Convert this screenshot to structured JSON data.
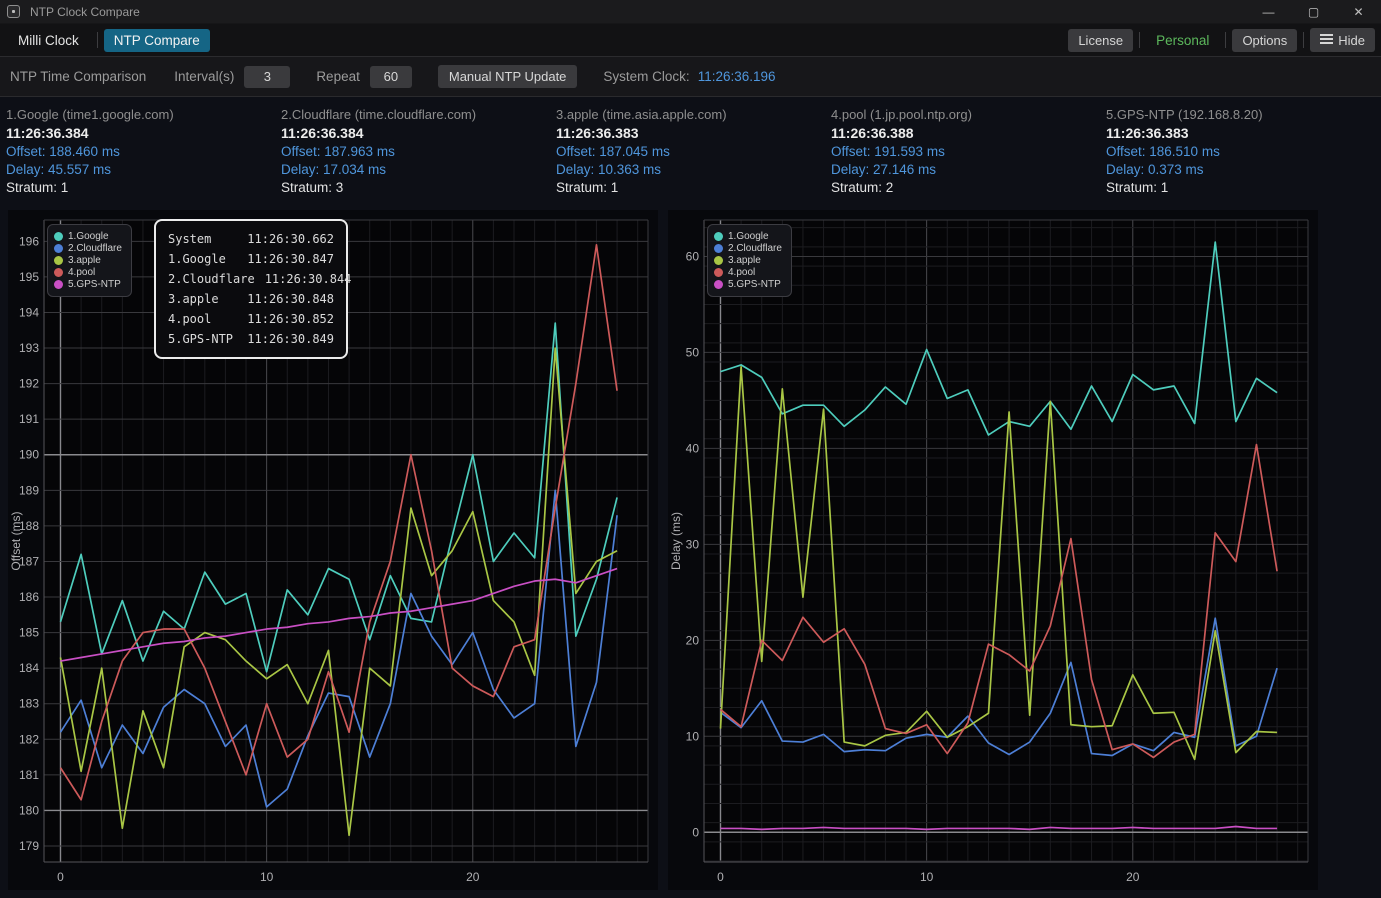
{
  "window": {
    "title": "NTP Clock Compare",
    "minimize": "—",
    "maximize": "▢",
    "close": "✕"
  },
  "tabbar": {
    "tab_milli": "Milli Clock",
    "tab_ntp": "NTP Compare",
    "license": "License",
    "personal": "Personal",
    "options": "Options",
    "hide": "Hide"
  },
  "toolbar": {
    "title": "NTP Time Comparison",
    "interval_label": "Interval(s)",
    "interval_value": "3",
    "repeat_label": "Repeat",
    "repeat_value": "60",
    "update_button": "Manual NTP Update",
    "system_clock_label": "System Clock:",
    "system_clock_value": "11:26:36.196"
  },
  "servers": [
    {
      "name": "1.Google (time1.google.com)",
      "time": "11:26:36.384",
      "offset": "Offset: 188.460 ms",
      "delay": "Delay: 45.557 ms",
      "stratum": "Stratum: 1"
    },
    {
      "name": "2.Cloudflare (time.cloudflare.com)",
      "time": "11:26:36.384",
      "offset": "Offset: 187.963 ms",
      "delay": "Delay: 17.034 ms",
      "stratum": "Stratum: 3"
    },
    {
      "name": "3.apple (time.asia.apple.com)",
      "time": "11:26:36.383",
      "offset": "Offset: 187.045 ms",
      "delay": "Delay: 10.363 ms",
      "stratum": "Stratum: 1"
    },
    {
      "name": "4.pool (1.jp.pool.ntp.org)",
      "time": "11:26:36.388",
      "offset": "Offset: 191.593 ms",
      "delay": "Delay: 27.146 ms",
      "stratum": "Stratum: 2"
    },
    {
      "name": "5.GPS-NTP (192.168.8.20)",
      "time": "11:26:36.383",
      "offset": "Offset: 186.510 ms",
      "delay": "Delay: 0.373 ms",
      "stratum": "Stratum: 1"
    }
  ],
  "tooltip": {
    "rows": [
      [
        "System",
        "11:26:30.662"
      ],
      [
        "1.Google",
        "11:26:30.847"
      ],
      [
        "2.Cloudflare",
        "11:26:30.844"
      ],
      [
        "3.apple",
        "11:26:30.848"
      ],
      [
        "4.pool",
        "11:26:30.852"
      ],
      [
        "5.GPS-NTP",
        "11:26:30.849"
      ]
    ]
  },
  "colors": {
    "google": "#4ecdbd",
    "cloudflare": "#4d7fd6",
    "apple": "#a9c645",
    "pool": "#cd5a5a",
    "gps": "#c94fc4",
    "accent_blue": "#4f96dc",
    "tab_active": "#156585",
    "green": "#5cb85c"
  },
  "chart_data": [
    {
      "type": "line",
      "title": "",
      "ylabel": "Offset (ms)",
      "xlabel": "",
      "ylim": [
        178.55,
        196.6
      ],
      "xlim": [
        -0.8,
        28.5
      ],
      "y_ticks": [
        179,
        180,
        181,
        182,
        183,
        184,
        185,
        186,
        187,
        188,
        189,
        190,
        191,
        192,
        193,
        194,
        195,
        196
      ],
      "y_bright": [
        180,
        190
      ],
      "x_ticks": [
        0,
        10,
        20
      ],
      "x_minor_step": 1,
      "legend_position": "top-left",
      "grid": true,
      "x": [
        0,
        1,
        2,
        3,
        4,
        5,
        6,
        7,
        8,
        9,
        10,
        11,
        12,
        13,
        14,
        15,
        16,
        17,
        18,
        19,
        20,
        21,
        22,
        23,
        24,
        25,
        26,
        27
      ],
      "series": [
        {
          "name": "1.Google",
          "color": "#4ecdbd",
          "values": [
            185.3,
            187.2,
            184.4,
            185.9,
            184.2,
            185.6,
            185.1,
            186.7,
            185.8,
            186.1,
            183.9,
            186.2,
            185.5,
            186.8,
            186.5,
            184.8,
            186.6,
            185.4,
            185.3,
            187.7,
            190.0,
            187.0,
            187.8,
            187.1,
            193.7,
            184.9,
            186.5,
            188.8
          ]
        },
        {
          "name": "2.Cloudflare",
          "color": "#4d7fd6",
          "values": [
            182.2,
            183.1,
            181.2,
            182.4,
            181.6,
            182.9,
            183.4,
            183.0,
            181.8,
            182.4,
            180.1,
            180.6,
            182.1,
            183.3,
            183.2,
            181.5,
            183.0,
            186.1,
            184.9,
            184.1,
            185.0,
            183.4,
            182.6,
            183.0,
            189.0,
            181.8,
            183.6,
            188.3
          ]
        },
        {
          "name": "3.apple",
          "color": "#a9c645",
          "values": [
            184.3,
            181.1,
            184.0,
            179.5,
            182.8,
            181.2,
            184.6,
            185.0,
            184.8,
            184.2,
            183.7,
            184.1,
            183.0,
            184.5,
            179.3,
            184.0,
            183.5,
            188.5,
            186.6,
            187.3,
            188.4,
            185.9,
            185.3,
            183.8,
            193.0,
            186.1,
            187.0,
            187.3
          ]
        },
        {
          "name": "4.pool",
          "color": "#cd5a5a",
          "values": [
            181.2,
            180.3,
            182.5,
            184.2,
            185.0,
            185.1,
            185.1,
            184.0,
            182.5,
            181.0,
            183.0,
            181.5,
            182.0,
            183.9,
            182.2,
            185.3,
            187.0,
            190.0,
            187.3,
            184.0,
            183.5,
            183.2,
            184.6,
            184.8,
            188.5,
            192.0,
            195.9,
            191.8
          ]
        },
        {
          "name": "5.GPS-NTP",
          "color": "#c94fc4",
          "values": [
            184.2,
            184.3,
            184.4,
            184.5,
            184.6,
            184.7,
            184.75,
            184.85,
            184.9,
            185.0,
            185.1,
            185.15,
            185.25,
            185.3,
            185.4,
            185.45,
            185.55,
            185.6,
            185.7,
            185.8,
            185.9,
            186.1,
            186.3,
            186.45,
            186.5,
            186.4,
            186.6,
            186.8
          ]
        }
      ]
    },
    {
      "type": "line",
      "title": "",
      "ylabel": "Delay (ms)",
      "xlabel": "",
      "ylim": [
        -3.1,
        63.8
      ],
      "xlim": [
        -0.8,
        28.5
      ],
      "y_ticks": [
        0,
        10,
        20,
        30,
        40,
        50,
        60
      ],
      "y_bright": [
        0
      ],
      "y_minor_step": 2,
      "x_ticks": [
        0,
        10,
        20
      ],
      "x_minor_step": 1,
      "legend_position": "top-left",
      "grid": true,
      "x": [
        0,
        1,
        2,
        3,
        4,
        5,
        6,
        7,
        8,
        9,
        10,
        11,
        12,
        13,
        14,
        15,
        16,
        17,
        18,
        19,
        20,
        21,
        22,
        23,
        24,
        25,
        26,
        27
      ],
      "series": [
        {
          "name": "1.Google",
          "color": "#4ecdbd",
          "values": [
            48.0,
            48.7,
            47.4,
            43.6,
            44.5,
            44.5,
            42.3,
            44.0,
            46.4,
            44.6,
            50.3,
            45.2,
            46.1,
            41.4,
            42.8,
            42.3,
            44.9,
            42.0,
            46.5,
            42.8,
            47.7,
            46.1,
            46.5,
            42.6,
            61.5,
            42.8,
            47.3,
            45.8
          ]
        },
        {
          "name": "2.Cloudflare",
          "color": "#4d7fd6",
          "values": [
            12.5,
            10.9,
            13.7,
            9.5,
            9.4,
            10.2,
            8.4,
            8.6,
            8.5,
            9.8,
            10.2,
            9.9,
            12.1,
            9.3,
            8.1,
            9.4,
            12.4,
            17.7,
            8.2,
            8.0,
            9.2,
            8.5,
            10.4,
            9.9,
            22.3,
            9.0,
            10.0,
            17.1
          ]
        },
        {
          "name": "3.apple",
          "color": "#a9c645",
          "values": [
            10.8,
            48.5,
            17.8,
            46.2,
            24.5,
            44.1,
            9.4,
            9.0,
            10.1,
            10.4,
            12.6,
            9.9,
            11.0,
            12.4,
            43.8,
            12.2,
            44.9,
            11.2,
            11.0,
            11.1,
            16.4,
            12.4,
            12.5,
            7.6,
            21.0,
            8.3,
            10.5,
            10.4
          ]
        },
        {
          "name": "4.pool",
          "color": "#cd5a5a",
          "values": [
            12.8,
            11.0,
            20.0,
            17.9,
            22.4,
            19.8,
            21.2,
            17.5,
            10.8,
            10.3,
            11.2,
            8.2,
            11.4,
            19.6,
            18.5,
            16.8,
            21.5,
            30.6,
            15.9,
            8.6,
            9.2,
            7.8,
            9.4,
            10.2,
            31.2,
            28.2,
            40.4,
            27.2
          ]
        },
        {
          "name": "5.GPS-NTP",
          "color": "#c94fc4",
          "values": [
            0.4,
            0.4,
            0.3,
            0.4,
            0.4,
            0.5,
            0.4,
            0.4,
            0.4,
            0.4,
            0.3,
            0.4,
            0.4,
            0.4,
            0.4,
            0.3,
            0.5,
            0.4,
            0.4,
            0.4,
            0.5,
            0.4,
            0.4,
            0.4,
            0.4,
            0.6,
            0.4,
            0.4
          ]
        }
      ]
    }
  ]
}
